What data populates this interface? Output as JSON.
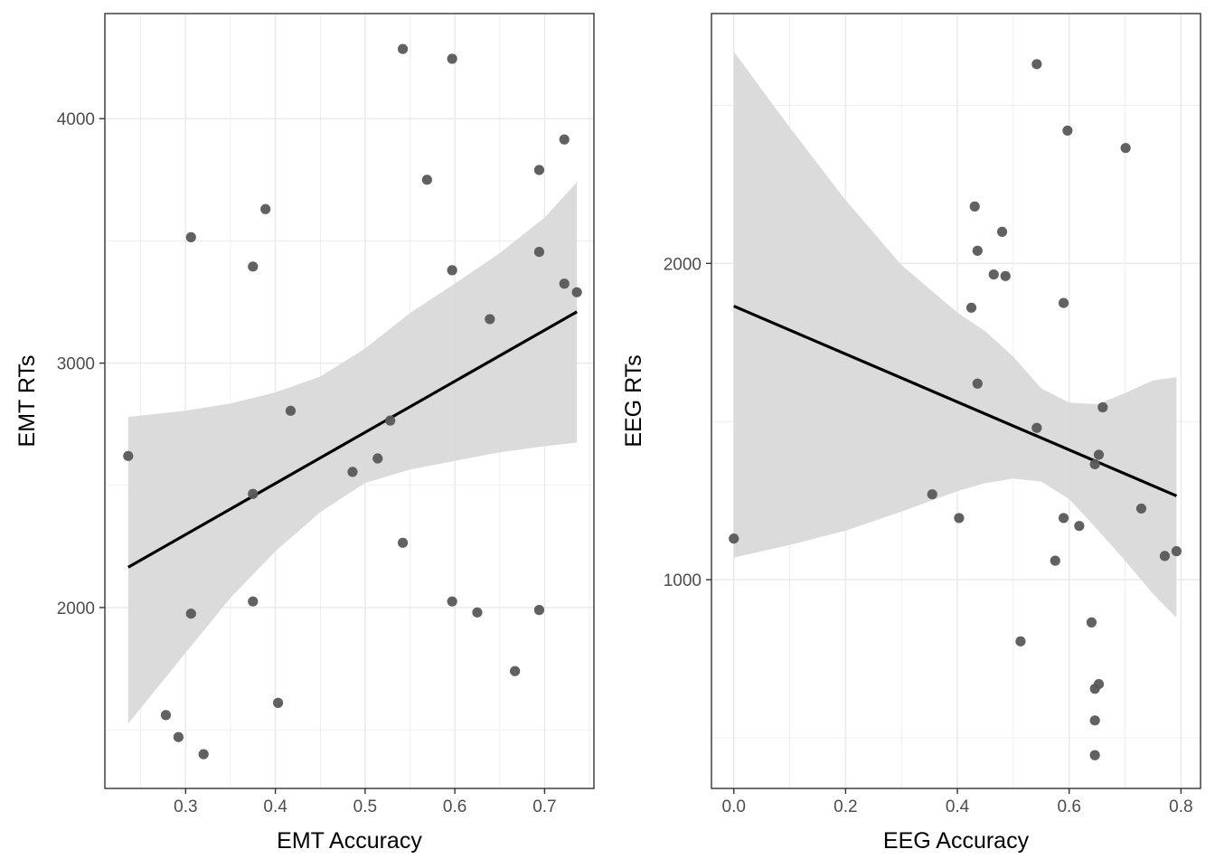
{
  "chart_data": [
    {
      "type": "scatter",
      "xlabel": "EMT Accuracy",
      "ylabel": "EMT RTs",
      "xlim": [
        0.21,
        0.755
      ],
      "ylim": [
        1260,
        4430
      ],
      "x_ticks": [
        0.3,
        0.4,
        0.5,
        0.6,
        0.7
      ],
      "x_tick_labels": [
        "0.3",
        "0.4",
        "0.5",
        "0.6",
        "0.7"
      ],
      "y_ticks": [
        2000,
        3000,
        4000
      ],
      "y_tick_labels": [
        "2000",
        "3000",
        "4000"
      ],
      "grid": true,
      "points": [
        {
          "x": 0.236,
          "y": 2620
        },
        {
          "x": 0.278,
          "y": 1560
        },
        {
          "x": 0.292,
          "y": 1470
        },
        {
          "x": 0.306,
          "y": 1975
        },
        {
          "x": 0.306,
          "y": 3515
        },
        {
          "x": 0.32,
          "y": 1400
        },
        {
          "x": 0.375,
          "y": 3395
        },
        {
          "x": 0.375,
          "y": 2465
        },
        {
          "x": 0.375,
          "y": 2025
        },
        {
          "x": 0.389,
          "y": 3630
        },
        {
          "x": 0.403,
          "y": 1610
        },
        {
          "x": 0.417,
          "y": 2805
        },
        {
          "x": 0.486,
          "y": 2555
        },
        {
          "x": 0.514,
          "y": 2610
        },
        {
          "x": 0.528,
          "y": 2765
        },
        {
          "x": 0.542,
          "y": 4285
        },
        {
          "x": 0.542,
          "y": 2265
        },
        {
          "x": 0.569,
          "y": 3750
        },
        {
          "x": 0.597,
          "y": 4245
        },
        {
          "x": 0.597,
          "y": 3380
        },
        {
          "x": 0.597,
          "y": 2025
        },
        {
          "x": 0.625,
          "y": 1980
        },
        {
          "x": 0.639,
          "y": 3180
        },
        {
          "x": 0.667,
          "y": 1740
        },
        {
          "x": 0.694,
          "y": 3790
        },
        {
          "x": 0.694,
          "y": 3455
        },
        {
          "x": 0.694,
          "y": 1990
        },
        {
          "x": 0.722,
          "y": 3915
        },
        {
          "x": 0.722,
          "y": 3325
        },
        {
          "x": 0.736,
          "y": 3290
        }
      ],
      "fit_line": {
        "x": [
          0.236,
          0.736
        ],
        "y": [
          2165,
          3210
        ]
      },
      "confidence_band": {
        "x": [
          0.236,
          0.3,
          0.35,
          0.4,
          0.45,
          0.5,
          0.55,
          0.6,
          0.65,
          0.7,
          0.736
        ],
        "upper": [
          2780,
          2805,
          2835,
          2880,
          2945,
          3060,
          3205,
          3325,
          3450,
          3595,
          3740
        ],
        "lower": [
          1525,
          1815,
          2040,
          2230,
          2390,
          2510,
          2565,
          2600,
          2635,
          2660,
          2675
        ]
      },
      "colors": {
        "points": "#595959",
        "line": "#000000",
        "band": "#d9d9d9",
        "grid": "#ebebeb",
        "border": "#333333"
      }
    },
    {
      "type": "scatter",
      "xlabel": "EEG Accuracy",
      "ylabel": "EEG RTs",
      "xlim": [
        -0.04,
        0.835
      ],
      "ylim": [
        340,
        2790
      ],
      "x_ticks": [
        0.0,
        0.2,
        0.4,
        0.6,
        0.8
      ],
      "x_tick_labels": [
        "0.0",
        "0.2",
        "0.4",
        "0.6",
        "0.8"
      ],
      "y_ticks": [
        1000,
        2000
      ],
      "y_tick_labels": [
        "1000",
        "2000"
      ],
      "grid": true,
      "points": [
        {
          "x": 0.0,
          "y": 1130
        },
        {
          "x": 0.355,
          "y": 1270
        },
        {
          "x": 0.403,
          "y": 1195
        },
        {
          "x": 0.425,
          "y": 1860
        },
        {
          "x": 0.431,
          "y": 2180
        },
        {
          "x": 0.436,
          "y": 2040
        },
        {
          "x": 0.436,
          "y": 1620
        },
        {
          "x": 0.465,
          "y": 1965
        },
        {
          "x": 0.48,
          "y": 2100
        },
        {
          "x": 0.486,
          "y": 1960
        },
        {
          "x": 0.513,
          "y": 805
        },
        {
          "x": 0.542,
          "y": 2630
        },
        {
          "x": 0.542,
          "y": 1480
        },
        {
          "x": 0.575,
          "y": 1060
        },
        {
          "x": 0.59,
          "y": 1875
        },
        {
          "x": 0.59,
          "y": 1195
        },
        {
          "x": 0.597,
          "y": 2420
        },
        {
          "x": 0.618,
          "y": 1170
        },
        {
          "x": 0.64,
          "y": 865
        },
        {
          "x": 0.646,
          "y": 1365
        },
        {
          "x": 0.646,
          "y": 655
        },
        {
          "x": 0.646,
          "y": 555
        },
        {
          "x": 0.646,
          "y": 445
        },
        {
          "x": 0.653,
          "y": 1395
        },
        {
          "x": 0.653,
          "y": 670
        },
        {
          "x": 0.66,
          "y": 1545
        },
        {
          "x": 0.701,
          "y": 2365
        },
        {
          "x": 0.729,
          "y": 1225
        },
        {
          "x": 0.771,
          "y": 1075
        },
        {
          "x": 0.792,
          "y": 1090
        }
      ],
      "fit_line": {
        "x": [
          0.0,
          0.792
        ],
        "y": [
          1865,
          1265
        ]
      },
      "confidence_band": {
        "x": [
          0.0,
          0.1,
          0.2,
          0.3,
          0.4,
          0.45,
          0.5,
          0.55,
          0.6,
          0.65,
          0.7,
          0.75,
          0.792
        ],
        "upper": [
          2670,
          2430,
          2200,
          1995,
          1845,
          1785,
          1705,
          1605,
          1560,
          1555,
          1590,
          1630,
          1640
        ],
        "lower": [
          1070,
          1110,
          1155,
          1215,
          1280,
          1305,
          1320,
          1310,
          1255,
          1160,
          1060,
          955,
          880
        ]
      },
      "colors": {
        "points": "#595959",
        "line": "#000000",
        "band": "#d9d9d9",
        "grid": "#ebebeb",
        "border": "#333333"
      }
    }
  ]
}
